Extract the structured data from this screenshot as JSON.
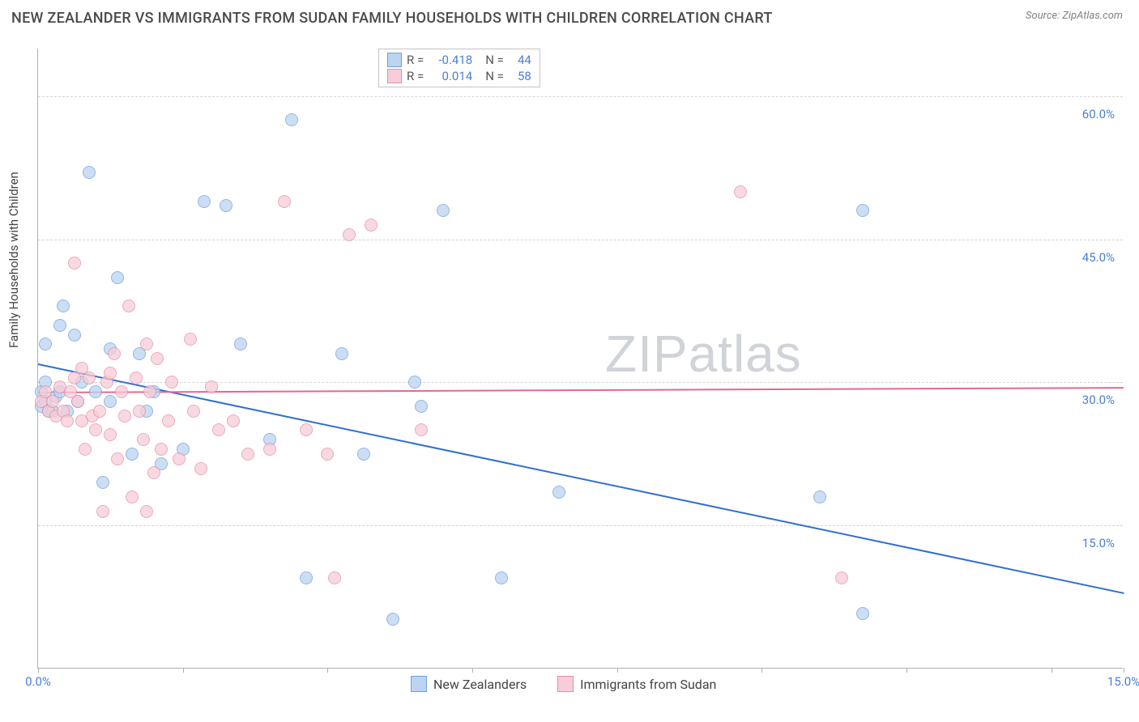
{
  "title": "NEW ZEALANDER VS IMMIGRANTS FROM SUDAN FAMILY HOUSEHOLDS WITH CHILDREN CORRELATION CHART",
  "source": "Source: ZipAtlas.com",
  "ylabel": "Family Households with Children",
  "chart": {
    "type": "scatter",
    "xlim": [
      0,
      15
    ],
    "ylim": [
      0,
      65
    ],
    "x_ticks": [
      0,
      2,
      4,
      6,
      8,
      10,
      12,
      14,
      15
    ],
    "x_tick_labels": {
      "0": "0.0%",
      "15": "15.0%"
    },
    "y_gridlines": [
      15,
      30,
      45,
      60
    ],
    "y_tick_labels": {
      "15": "15.0%",
      "30": "30.0%",
      "45": "45.0%",
      "60": "60.0%"
    },
    "background_color": "#ffffff",
    "grid_color": "#d4d4d4",
    "axis_color": "#b0b0b0",
    "tick_label_color": "#4a7fd6",
    "point_radius": 8,
    "point_opacity": 0.75,
    "watermark": "ZIPatlas",
    "series": [
      {
        "name": "New Zealanders",
        "fill": "#bcd4f0",
        "stroke": "#6d9fe0",
        "trend": {
          "color": "#2f6fd0",
          "y_at_x0": 32,
          "y_at_x15": 8
        },
        "R": "-0.418",
        "N": "44",
        "points": [
          [
            0.05,
            29
          ],
          [
            0.05,
            27.5
          ],
          [
            0.1,
            34
          ],
          [
            0.1,
            30
          ],
          [
            0.1,
            28
          ],
          [
            0.15,
            27
          ],
          [
            0.2,
            27
          ],
          [
            0.25,
            28.5
          ],
          [
            0.3,
            36
          ],
          [
            0.3,
            29
          ],
          [
            0.35,
            38
          ],
          [
            0.4,
            27
          ],
          [
            0.5,
            35
          ],
          [
            0.55,
            28
          ],
          [
            0.6,
            30
          ],
          [
            0.7,
            52
          ],
          [
            0.8,
            29
          ],
          [
            0.9,
            19.5
          ],
          [
            1.0,
            33.5
          ],
          [
            1.0,
            28
          ],
          [
            1.1,
            41
          ],
          [
            1.3,
            22.5
          ],
          [
            1.4,
            33
          ],
          [
            1.5,
            27
          ],
          [
            1.6,
            29
          ],
          [
            1.7,
            21.5
          ],
          [
            2.0,
            23
          ],
          [
            2.3,
            49
          ],
          [
            2.6,
            48.5
          ],
          [
            2.8,
            34
          ],
          [
            3.2,
            24
          ],
          [
            3.5,
            57.5
          ],
          [
            3.7,
            9.5
          ],
          [
            4.2,
            33
          ],
          [
            4.5,
            22.5
          ],
          [
            4.9,
            5.2
          ],
          [
            5.2,
            30
          ],
          [
            5.3,
            27.5
          ],
          [
            5.6,
            48
          ],
          [
            6.4,
            9.5
          ],
          [
            7.2,
            18.5
          ],
          [
            10.8,
            18
          ],
          [
            11.4,
            5.8
          ],
          [
            11.4,
            48
          ]
        ]
      },
      {
        "name": "Immigrants from Sudan",
        "fill": "#f6cdd8",
        "stroke": "#e88da5",
        "trend": {
          "color": "#e26a8c",
          "y_at_x0": 29,
          "y_at_x15": 29.5
        },
        "R": "0.014",
        "N": "58",
        "points": [
          [
            0.05,
            28
          ],
          [
            0.1,
            29
          ],
          [
            0.15,
            27
          ],
          [
            0.2,
            28
          ],
          [
            0.25,
            26.5
          ],
          [
            0.3,
            29.5
          ],
          [
            0.35,
            27
          ],
          [
            0.4,
            26
          ],
          [
            0.45,
            29
          ],
          [
            0.5,
            30.5
          ],
          [
            0.5,
            42.5
          ],
          [
            0.55,
            28
          ],
          [
            0.6,
            31.5
          ],
          [
            0.6,
            26
          ],
          [
            0.65,
            23
          ],
          [
            0.7,
            30.5
          ],
          [
            0.75,
            26.5
          ],
          [
            0.8,
            25
          ],
          [
            0.85,
            27
          ],
          [
            0.9,
            16.5
          ],
          [
            0.95,
            30
          ],
          [
            1.0,
            31
          ],
          [
            1.0,
            24.5
          ],
          [
            1.05,
            33
          ],
          [
            1.1,
            22
          ],
          [
            1.15,
            29
          ],
          [
            1.2,
            26.5
          ],
          [
            1.25,
            38
          ],
          [
            1.3,
            18
          ],
          [
            1.35,
            30.5
          ],
          [
            1.4,
            27
          ],
          [
            1.45,
            24
          ],
          [
            1.5,
            34
          ],
          [
            1.5,
            16.5
          ],
          [
            1.55,
            29
          ],
          [
            1.6,
            20.5
          ],
          [
            1.65,
            32.5
          ],
          [
            1.7,
            23
          ],
          [
            1.8,
            26
          ],
          [
            1.85,
            30
          ],
          [
            1.95,
            22
          ],
          [
            2.1,
            34.5
          ],
          [
            2.15,
            27
          ],
          [
            2.25,
            21
          ],
          [
            2.4,
            29.5
          ],
          [
            2.5,
            25
          ],
          [
            2.7,
            26
          ],
          [
            2.9,
            22.5
          ],
          [
            3.2,
            23
          ],
          [
            3.4,
            49
          ],
          [
            3.7,
            25
          ],
          [
            4.0,
            22.5
          ],
          [
            4.1,
            9.5
          ],
          [
            4.3,
            45.5
          ],
          [
            4.6,
            46.5
          ],
          [
            5.3,
            25
          ],
          [
            9.7,
            50
          ],
          [
            11.1,
            9.5
          ]
        ]
      }
    ]
  },
  "legend_bottom": [
    {
      "label": "New Zealanders"
    },
    {
      "label": "Immigrants from Sudan"
    }
  ]
}
